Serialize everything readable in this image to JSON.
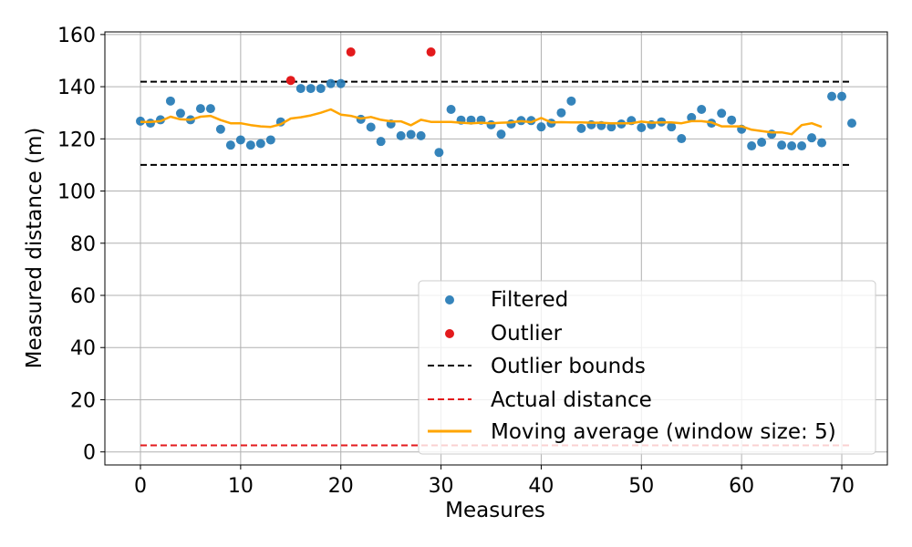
{
  "chart_data": {
    "type": "scatter",
    "xlabel": "Measures",
    "ylabel": "Measured distance (m)",
    "xlim": [
      -3.55,
      74.55
    ],
    "ylim": [
      -5,
      161
    ],
    "xticks": [
      0,
      10,
      20,
      30,
      40,
      50,
      60,
      70
    ],
    "yticks": [
      0,
      20,
      40,
      60,
      80,
      100,
      120,
      140,
      160
    ],
    "grid": true,
    "legend_position": "lower-right",
    "colors": {
      "filtered": "#1f77b4",
      "outlier": "#e31a1c",
      "bounds": "#000000",
      "actual": "#e31a1c",
      "moving_average": "#ffa500"
    },
    "series": [
      {
        "name": "Filtered",
        "kind": "scatter",
        "points": [
          [
            0,
            126.8
          ],
          [
            1,
            126.0
          ],
          [
            2,
            127.3
          ],
          [
            3,
            134.5
          ],
          [
            4,
            129.8
          ],
          [
            5,
            127.3
          ],
          [
            6,
            131.6
          ],
          [
            7,
            131.6
          ],
          [
            8,
            123.7
          ],
          [
            9,
            117.6
          ],
          [
            10,
            119.6
          ],
          [
            11,
            117.6
          ],
          [
            12,
            118.2
          ],
          [
            13,
            119.6
          ],
          [
            14,
            126.5
          ],
          [
            16,
            139.3
          ],
          [
            17,
            139.3
          ],
          [
            18,
            139.3
          ],
          [
            19,
            141.2
          ],
          [
            20,
            141.2
          ],
          [
            22,
            127.5
          ],
          [
            23,
            124.5
          ],
          [
            24,
            119.0
          ],
          [
            25,
            125.7
          ],
          [
            26,
            121.2
          ],
          [
            27,
            121.7
          ],
          [
            28,
            121.2
          ],
          [
            29.8,
            114.8
          ],
          [
            31,
            131.3
          ],
          [
            32,
            127.2
          ],
          [
            33,
            127.2
          ],
          [
            34,
            127.2
          ],
          [
            35,
            125.4
          ],
          [
            36,
            121.8
          ],
          [
            37,
            125.7
          ],
          [
            38,
            127.0
          ],
          [
            39,
            127.0
          ],
          [
            40,
            124.6
          ],
          [
            41,
            126.0
          ],
          [
            42,
            130.0
          ],
          [
            43,
            134.5
          ],
          [
            44,
            124.0
          ],
          [
            45,
            125.4
          ],
          [
            46,
            125.1
          ],
          [
            47,
            124.6
          ],
          [
            48,
            125.7
          ],
          [
            49,
            127.0
          ],
          [
            50,
            124.3
          ],
          [
            51,
            125.4
          ],
          [
            52,
            126.5
          ],
          [
            53,
            124.6
          ],
          [
            54,
            120.1
          ],
          [
            55,
            128.2
          ],
          [
            56,
            131.3
          ],
          [
            57,
            126.0
          ],
          [
            58,
            129.8
          ],
          [
            59,
            127.2
          ],
          [
            60,
            123.7
          ],
          [
            61,
            117.3
          ],
          [
            62,
            118.7
          ],
          [
            63,
            121.8
          ],
          [
            64,
            117.6
          ],
          [
            65,
            117.3
          ],
          [
            66,
            117.3
          ],
          [
            67,
            120.4
          ],
          [
            68,
            118.5
          ],
          [
            69,
            136.3
          ],
          [
            70,
            136.3
          ],
          [
            71,
            126.0
          ]
        ]
      },
      {
        "name": "Outlier",
        "kind": "scatter",
        "points": [
          [
            15,
            142.4
          ],
          [
            21,
            153.3
          ],
          [
            29,
            153.3
          ]
        ]
      },
      {
        "name": "Outlier bounds",
        "kind": "hline-dashed",
        "values": [
          141.9,
          110.0
        ],
        "x_range": [
          0,
          71
        ]
      },
      {
        "name": "Actual distance",
        "kind": "hline-dashed",
        "values": [
          2.5
        ],
        "x_range": [
          0,
          71
        ]
      },
      {
        "name": "Moving average (window size: 5)",
        "kind": "line",
        "points": [
          [
            0,
            126.5
          ],
          [
            1,
            126.5
          ],
          [
            2,
            126.8
          ],
          [
            3,
            128.5
          ],
          [
            4,
            127.5
          ],
          [
            5,
            127.3
          ],
          [
            6,
            128.5
          ],
          [
            7,
            128.8
          ],
          [
            8,
            127.2
          ],
          [
            9,
            126.0
          ],
          [
            10,
            126.0
          ],
          [
            11,
            125.3
          ],
          [
            12,
            124.8
          ],
          [
            13,
            124.6
          ],
          [
            14,
            125.6
          ],
          [
            15,
            127.8
          ],
          [
            16,
            128.3
          ],
          [
            17,
            129.0
          ],
          [
            18,
            130.0
          ],
          [
            19,
            131.3
          ],
          [
            20,
            129.3
          ],
          [
            21,
            128.8
          ],
          [
            22,
            127.8
          ],
          [
            23,
            128.4
          ],
          [
            24,
            127.3
          ],
          [
            25,
            126.7
          ],
          [
            26,
            126.7
          ],
          [
            27,
            125.2
          ],
          [
            28,
            127.3
          ],
          [
            29,
            126.5
          ],
          [
            30,
            126.5
          ],
          [
            31,
            126.5
          ],
          [
            32,
            126.2
          ],
          [
            33,
            126.0
          ],
          [
            34,
            126.2
          ],
          [
            35,
            126.0
          ],
          [
            36,
            126.2
          ],
          [
            37,
            126.3
          ],
          [
            38,
            126.8
          ],
          [
            39,
            126.4
          ],
          [
            40,
            128.0
          ],
          [
            41,
            126.3
          ],
          [
            42,
            126.4
          ],
          [
            43,
            126.3
          ],
          [
            44,
            126.3
          ],
          [
            45,
            126.2
          ],
          [
            46,
            126.2
          ],
          [
            47,
            126.0
          ],
          [
            48,
            126.0
          ],
          [
            49,
            126.0
          ],
          [
            50,
            126.6
          ],
          [
            51,
            126.2
          ],
          [
            52,
            126.3
          ],
          [
            53,
            126.3
          ],
          [
            54,
            126.0
          ],
          [
            55,
            126.8
          ],
          [
            56,
            126.8
          ],
          [
            57,
            126.3
          ],
          [
            58,
            124.8
          ],
          [
            59,
            124.8
          ],
          [
            60,
            124.8
          ],
          [
            61,
            123.5
          ],
          [
            62,
            123.0
          ],
          [
            63,
            122.5
          ],
          [
            64,
            122.5
          ],
          [
            65,
            121.8
          ],
          [
            66,
            125.3
          ],
          [
            67,
            126.0
          ],
          [
            68,
            124.6
          ]
        ]
      }
    ]
  }
}
